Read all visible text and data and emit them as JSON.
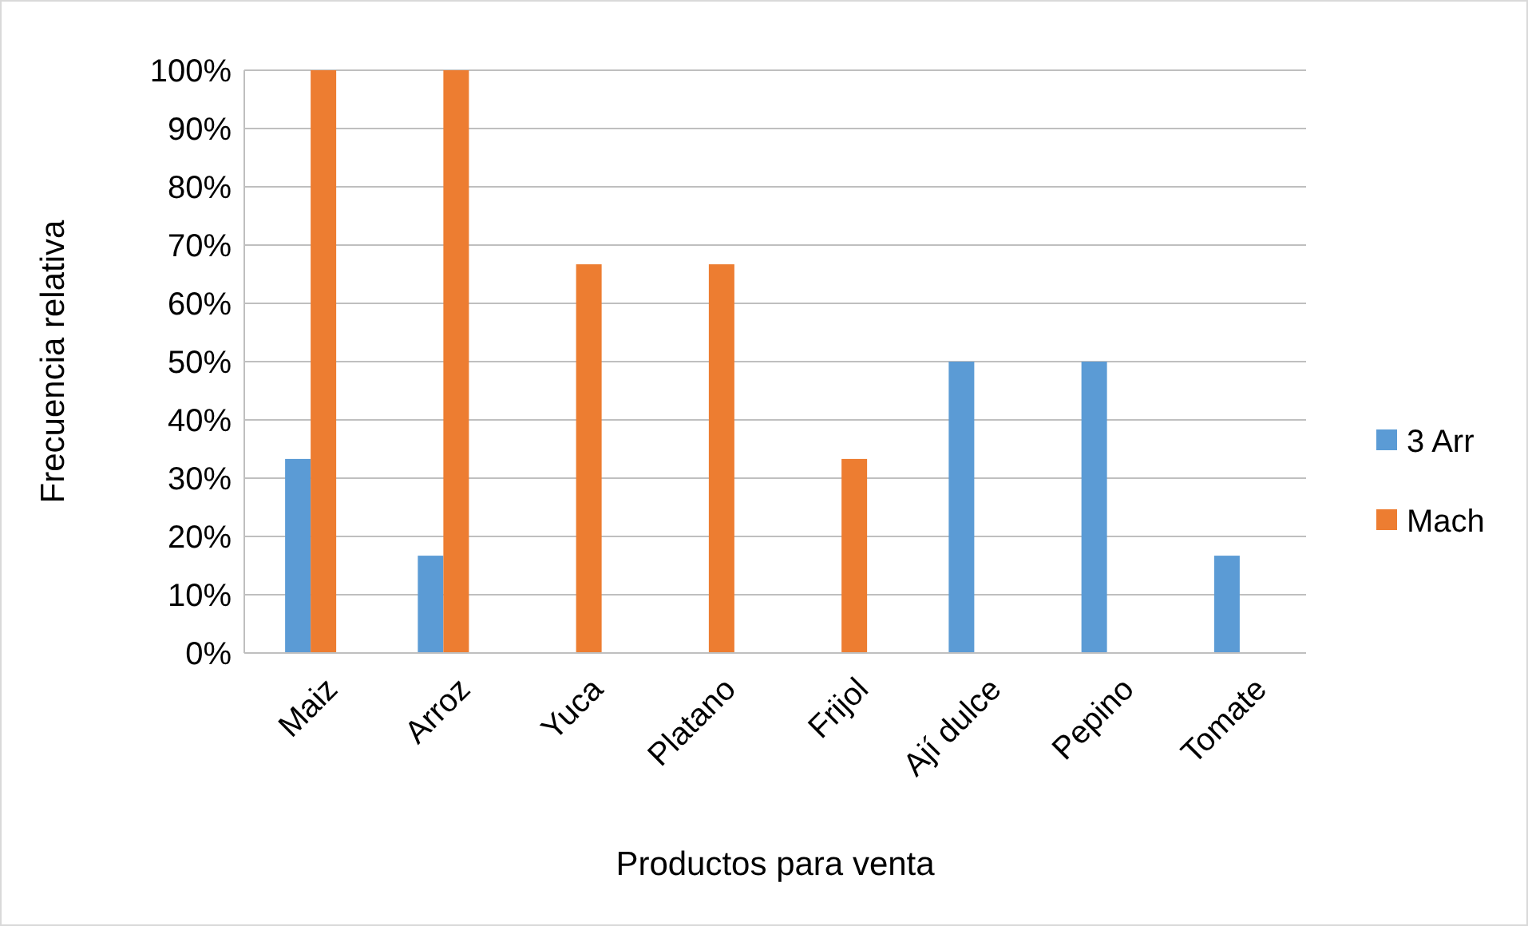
{
  "chart_data": {
    "type": "bar",
    "xlabel": "Productos para venta",
    "ylabel": "Frecuencia relativa",
    "categories": [
      "Maiz",
      "Arroz",
      "Yuca",
      "Platano",
      "Frijol",
      "Ají dulce",
      "Pepino",
      "Tomate"
    ],
    "series": [
      {
        "name": "3 Arr",
        "color": "#5b9bd5",
        "values": [
          33.3,
          16.7,
          0,
          0,
          0,
          50,
          50,
          16.7
        ]
      },
      {
        "name": "Mach",
        "color": "#ed7d31",
        "values": [
          100,
          100,
          66.7,
          66.7,
          33.3,
          0,
          0,
          0
        ]
      }
    ],
    "ylim": [
      0,
      100
    ],
    "yticks": [
      {
        "value": 0,
        "label": "0%"
      },
      {
        "value": 10,
        "label": "10%"
      },
      {
        "value": 20,
        "label": "20%"
      },
      {
        "value": 30,
        "label": "30%"
      },
      {
        "value": 40,
        "label": "40%"
      },
      {
        "value": 50,
        "label": "50%"
      },
      {
        "value": 60,
        "label": "60%"
      },
      {
        "value": 70,
        "label": "70%"
      },
      {
        "value": 80,
        "label": "80%"
      },
      {
        "value": 90,
        "label": "90%"
      },
      {
        "value": 100,
        "label": "100%"
      }
    ],
    "grid": "y",
    "legend": "right"
  }
}
